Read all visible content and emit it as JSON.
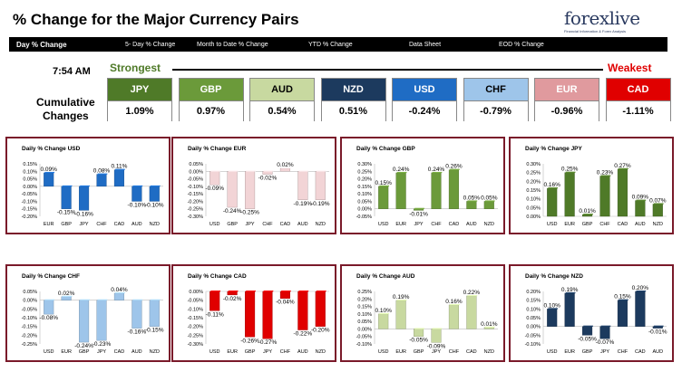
{
  "header": {
    "title": "% Change for the Major Currency Pairs",
    "logo": "forexlive",
    "logo_tagline": "Financial Information & Forex Analysis"
  },
  "nav": {
    "items": [
      "Day % Change",
      "5- Day % Change",
      "Month to Date % Change",
      "YTD % Change",
      "Data Sheet",
      "EOD % Change"
    ]
  },
  "strength": {
    "time": "7:54 AM",
    "strongest_label": "Strongest",
    "weakest_label": "Weakest",
    "row_label_line1": "Cumulative",
    "row_label_line2": "Changes",
    "currencies": [
      {
        "code": "JPY",
        "value": "1.09%",
        "color": "#4f7a28"
      },
      {
        "code": "GBP",
        "value": "0.97%",
        "color": "#6b9a3a"
      },
      {
        "code": "AUD",
        "value": "0.54%",
        "color": "#c8d9a0"
      },
      {
        "code": "NZD",
        "value": "0.51%",
        "color": "#1c3a5e"
      },
      {
        "code": "USD",
        "value": "-0.24%",
        "color": "#1f6cc4"
      },
      {
        "code": "CHF",
        "value": "-0.79%",
        "color": "#9ec5ea"
      },
      {
        "code": "EUR",
        "value": "-0.96%",
        "color": "#e09a9e"
      },
      {
        "code": "CAD",
        "value": "-1.11%",
        "color": "#e00000"
      }
    ]
  },
  "chart_data": [
    {
      "type": "bar",
      "title": "Daily % Change USD",
      "categories": [
        "EUR",
        "GBP",
        "JPY",
        "CHF",
        "CAD",
        "AUD",
        "NZD"
      ],
      "values": [
        0.09,
        -0.15,
        -0.16,
        0.08,
        0.11,
        -0.1,
        -0.1
      ],
      "labels": [
        "0.09%",
        "-0.15%",
        "-0.16%",
        "0.08%",
        "0.11%",
        "-0.10%",
        "-0.10%"
      ],
      "ylim": [
        -0.2,
        0.15
      ],
      "ticks": [
        "0.15%",
        "0.10%",
        "0.05%",
        "0.00%",
        "-0.05%",
        "-0.10%",
        "-0.15%",
        "-0.20%"
      ],
      "color": "#1f6cc4"
    },
    {
      "type": "bar",
      "title": "Daily % Change EUR",
      "categories": [
        "USD",
        "GBP",
        "JPY",
        "CHF",
        "CAD",
        "AUD",
        "NZD"
      ],
      "values": [
        -0.09,
        -0.24,
        -0.25,
        -0.02,
        0.02,
        -0.19,
        -0.19
      ],
      "labels": [
        "-0.09%",
        "-0.24%",
        "-0.25%",
        "-0.02%",
        "0.02%",
        "-0.19%",
        "-0.19%"
      ],
      "ylim": [
        -0.3,
        0.05
      ],
      "ticks": [
        "0.05%",
        "0.00%",
        "-0.05%",
        "-0.10%",
        "-0.15%",
        "-0.20%",
        "-0.25%",
        "-0.30%"
      ],
      "color": "#f2d4d6"
    },
    {
      "type": "bar",
      "title": "Daily % Change GBP",
      "categories": [
        "USD",
        "EUR",
        "JPY",
        "CHF",
        "CAD",
        "AUD",
        "NZD"
      ],
      "values": [
        0.15,
        0.24,
        -0.01,
        0.24,
        0.26,
        0.05,
        0.05
      ],
      "labels": [
        "0.15%",
        "0.24%",
        "-0.01%",
        "0.24%",
        "0.26%",
        "0.05%",
        "0.05%"
      ],
      "ylim": [
        -0.05,
        0.3
      ],
      "ticks": [
        "0.30%",
        "0.25%",
        "0.20%",
        "0.15%",
        "0.10%",
        "0.05%",
        "0.00%",
        "-0.05%"
      ],
      "color": "#6b9a3a"
    },
    {
      "type": "bar",
      "title": "Daily % Change JPY",
      "categories": [
        "USD",
        "EUR",
        "GBP",
        "CHF",
        "CAD",
        "AUD",
        "NZD"
      ],
      "values": [
        0.16,
        0.25,
        0.01,
        0.23,
        0.27,
        0.09,
        0.07
      ],
      "labels": [
        "0.16%",
        "0.25%",
        "0.01%",
        "0.23%",
        "0.27%",
        "0.09%",
        "0.07%"
      ],
      "ylim": [
        0.0,
        0.3
      ],
      "ticks": [
        "0.30%",
        "0.25%",
        "0.20%",
        "0.15%",
        "0.10%",
        "0.05%",
        "0.00%"
      ],
      "color": "#4f7a28"
    },
    {
      "type": "bar",
      "title": "Daily % Change CHF",
      "categories": [
        "USD",
        "EUR",
        "GBP",
        "JPY",
        "CAD",
        "AUD",
        "NZD"
      ],
      "values": [
        -0.08,
        0.02,
        -0.24,
        -0.23,
        0.04,
        -0.16,
        -0.15
      ],
      "labels": [
        "-0.08%",
        "0.02%",
        "-0.24%",
        "-0.23%",
        "0.04%",
        "-0.16%",
        "-0.15%"
      ],
      "ylim": [
        -0.25,
        0.05
      ],
      "ticks": [
        "0.05%",
        "0.00%",
        "-0.05%",
        "-0.10%",
        "-0.15%",
        "-0.20%",
        "-0.25%"
      ],
      "color": "#9ec5ea"
    },
    {
      "type": "bar",
      "title": "Daily % Change CAD",
      "categories": [
        "USD",
        "EUR",
        "GBP",
        "JPY",
        "CHF",
        "AUD",
        "NZD"
      ],
      "values": [
        -0.11,
        -0.02,
        -0.26,
        -0.27,
        -0.04,
        -0.22,
        -0.2
      ],
      "labels": [
        "-0.11%",
        "-0.02%",
        "-0.26%",
        "-0.27%",
        "-0.04%",
        "-0.22%",
        "-0.20%"
      ],
      "ylim": [
        -0.3,
        0.0
      ],
      "ticks": [
        "0.00%",
        "-0.05%",
        "-0.10%",
        "-0.15%",
        "-0.20%",
        "-0.25%",
        "-0.30%"
      ],
      "color": "#e00000"
    },
    {
      "type": "bar",
      "title": "Daily % Change AUD",
      "categories": [
        "USD",
        "EUR",
        "GBP",
        "JPY",
        "CHF",
        "CAD",
        "NZD"
      ],
      "values": [
        0.1,
        0.19,
        -0.05,
        -0.09,
        0.16,
        0.22,
        0.01
      ],
      "labels": [
        "0.10%",
        "0.19%",
        "-0.05%",
        "-0.09%",
        "0.16%",
        "0.22%",
        "0.01%"
      ],
      "ylim": [
        -0.1,
        0.25
      ],
      "ticks": [
        "0.25%",
        "0.20%",
        "0.15%",
        "0.10%",
        "0.05%",
        "0.00%",
        "-0.05%",
        "-0.10%"
      ],
      "color": "#c8d9a0"
    },
    {
      "type": "bar",
      "title": "Daily % Change NZD",
      "categories": [
        "USD",
        "EUR",
        "GBP",
        "JPY",
        "CHF",
        "CAD",
        "AUD"
      ],
      "values": [
        0.1,
        0.19,
        -0.05,
        -0.07,
        0.15,
        0.2,
        -0.01
      ],
      "labels": [
        "0.10%",
        "0.19%",
        "-0.05%",
        "-0.07%",
        "0.15%",
        "0.20%",
        "-0.01%"
      ],
      "ylim": [
        -0.1,
        0.2
      ],
      "ticks": [
        "0.20%",
        "0.15%",
        "0.10%",
        "0.05%",
        "0.00%",
        "-0.05%",
        "-0.10%"
      ],
      "color": "#1c3a5e"
    }
  ]
}
